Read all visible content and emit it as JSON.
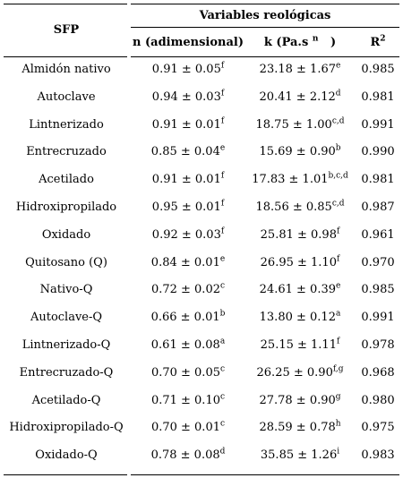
{
  "header": {
    "sfp": "SFP",
    "group": "Variables reológicas",
    "n_col": "n (adimensional)",
    "k_col": "k (Pa.s",
    "k_sup": "n",
    "k_close": ")",
    "r2_base": "R",
    "r2_sup": "2"
  },
  "rows": [
    {
      "name": "Almidón nativo",
      "n": "0.91 ± 0.05",
      "n_sup": "f",
      "k": "23.18 ± 1.67",
      "k_sup": "e",
      "r2": "0.985"
    },
    {
      "name": "Autoclave",
      "n": "0.94 ± 0.03",
      "n_sup": "f",
      "k": "20.41 ± 2.12",
      "k_sup": "d",
      "r2": "0.981"
    },
    {
      "name": "Lintnerizado",
      "n": "0.91 ± 0.01",
      "n_sup": "f",
      "k": "18.75 ± 1.00",
      "k_sup": "c,d",
      "r2": "0.991"
    },
    {
      "name": "Entrecruzado",
      "n": "0.85 ± 0.04",
      "n_sup": "e",
      "k": "15.69 ± 0.90",
      "k_sup": "b",
      "r2": "0.990"
    },
    {
      "name": "Acetilado",
      "n": "0.91 ± 0.01",
      "n_sup": "f",
      "k": "17.83 ± 1.01",
      "k_sup": "b,c,d",
      "r2": "0.981"
    },
    {
      "name": "Hidroxipropilado",
      "n": "0.95 ± 0.01",
      "n_sup": "f",
      "k": "18.56 ± 0.85",
      "k_sup": "c,d",
      "r2": "0.987"
    },
    {
      "name": "Oxidado",
      "n": "0.92 ± 0.03",
      "n_sup": "f",
      "k": "25.81 ± 0.98",
      "k_sup": "f",
      "r2": "0.961"
    },
    {
      "name": "Quitosano (Q)",
      "n": "0.84 ± 0.01",
      "n_sup": "e",
      "k": "26.95 ± 1.10",
      "k_sup": "f",
      "r2": "0.970"
    },
    {
      "name": "Nativo-Q",
      "n": "0.72 ± 0.02",
      "n_sup": "c",
      "k": "24.61 ± 0.39",
      "k_sup": "e",
      "r2": "0.985"
    },
    {
      "name": "Autoclave-Q",
      "n": "0.66 ± 0.01",
      "n_sup": "b",
      "k": "13.80 ± 0.12",
      "k_sup": "a",
      "r2": "0.991"
    },
    {
      "name": "Lintnerizado-Q",
      "n": "0.61 ± 0.08",
      "n_sup": "a",
      "k": "25.15 ± 1.11",
      "k_sup": "f",
      "r2": "0.978"
    },
    {
      "name": "Entrecruzado-Q",
      "n": "0.70 ± 0.05",
      "n_sup": "c",
      "k": "26.25 ± 0.90",
      "k_sup": "f,g",
      "r2": "0.968"
    },
    {
      "name": "Acetilado-Q",
      "n": "0.71 ± 0.10",
      "n_sup": "c",
      "k": "27.78 ± 0.90",
      "k_sup": "g",
      "r2": "0.980"
    },
    {
      "name": "Hidroxipropilado-Q",
      "n": "0.70 ± 0.01",
      "n_sup": "c",
      "k": "28.59 ± 0.78",
      "k_sup": "h",
      "r2": "0.975"
    },
    {
      "name": "Oxidado-Q",
      "n": "0.78 ± 0.08",
      "n_sup": "d",
      "k": "35.85 ± 1.26",
      "k_sup": "i",
      "r2": "0.983"
    }
  ]
}
